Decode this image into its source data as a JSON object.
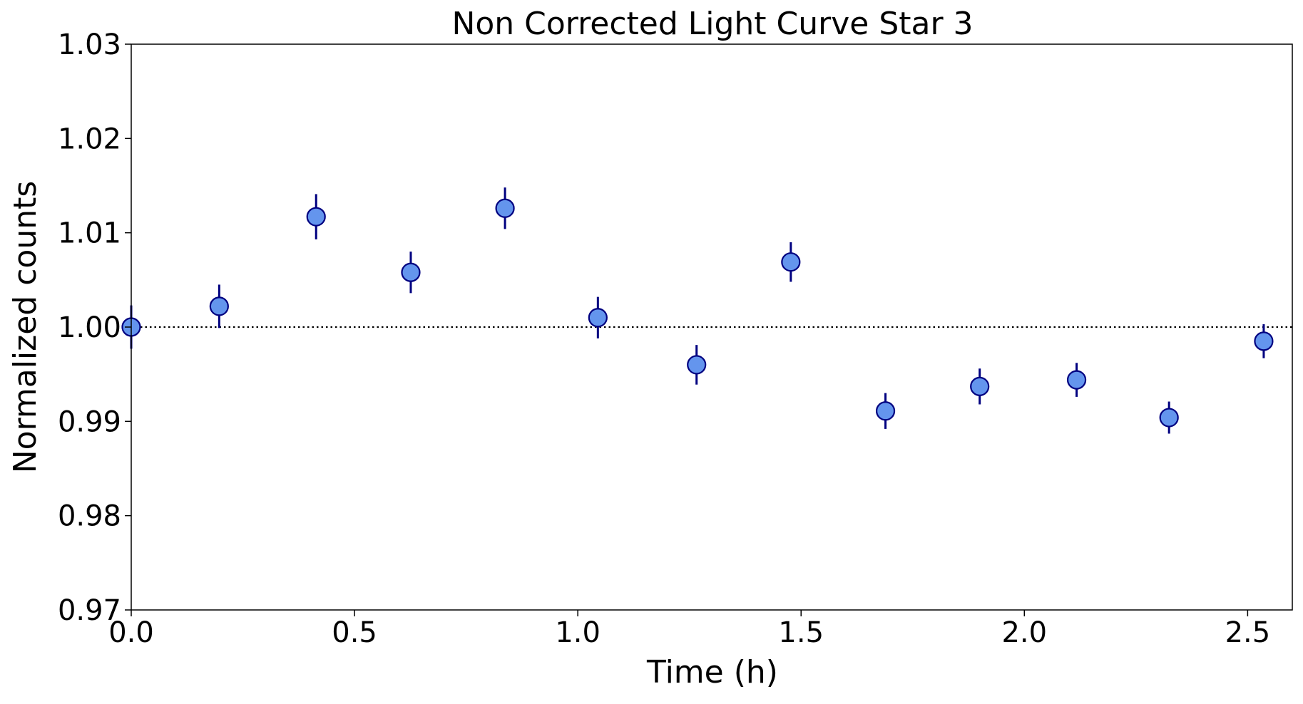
{
  "chart_data": {
    "type": "scatter",
    "title": "Non Corrected Light Curve Star 3",
    "xlabel": "Time (h)",
    "ylabel": "Normalized counts",
    "xlim": [
      0.0,
      2.6
    ],
    "ylim": [
      0.97,
      1.03
    ],
    "x_ticks": [
      0.0,
      0.5,
      1.0,
      1.5,
      2.0,
      2.5
    ],
    "x_tick_labels": [
      "0.0",
      "0.5",
      "1.0",
      "1.5",
      "2.0",
      "2.5"
    ],
    "y_ticks": [
      0.97,
      0.98,
      0.99,
      1.0,
      1.01,
      1.02,
      1.03
    ],
    "y_tick_labels": [
      "0.97",
      "0.98",
      "0.99",
      "1.00",
      "1.01",
      "1.02",
      "1.03"
    ],
    "grid": false,
    "reference_line": {
      "y": 1.0,
      "style": "dotted",
      "color": "#000000"
    },
    "series": [
      {
        "marker_fill": "#6495ED",
        "marker_edge": "#000080",
        "errorbar_color": "#000080",
        "points": [
          {
            "x": 0.0,
            "y": 1.0,
            "err": 0.0023
          },
          {
            "x": 0.197,
            "y": 1.0022,
            "err": 0.0023
          },
          {
            "x": 0.414,
            "y": 1.0117,
            "err": 0.0024
          },
          {
            "x": 0.626,
            "y": 1.0058,
            "err": 0.0022
          },
          {
            "x": 0.837,
            "y": 1.0126,
            "err": 0.0022
          },
          {
            "x": 1.045,
            "y": 1.001,
            "err": 0.0022
          },
          {
            "x": 1.266,
            "y": 0.996,
            "err": 0.0021
          },
          {
            "x": 1.477,
            "y": 1.0069,
            "err": 0.0021
          },
          {
            "x": 1.689,
            "y": 0.9911,
            "err": 0.0019
          },
          {
            "x": 1.9,
            "y": 0.9937,
            "err": 0.0019
          },
          {
            "x": 2.117,
            "y": 0.9944,
            "err": 0.0018
          },
          {
            "x": 2.324,
            "y": 0.9904,
            "err": 0.0017
          },
          {
            "x": 2.536,
            "y": 0.9985,
            "err": 0.0018
          }
        ]
      }
    ]
  }
}
